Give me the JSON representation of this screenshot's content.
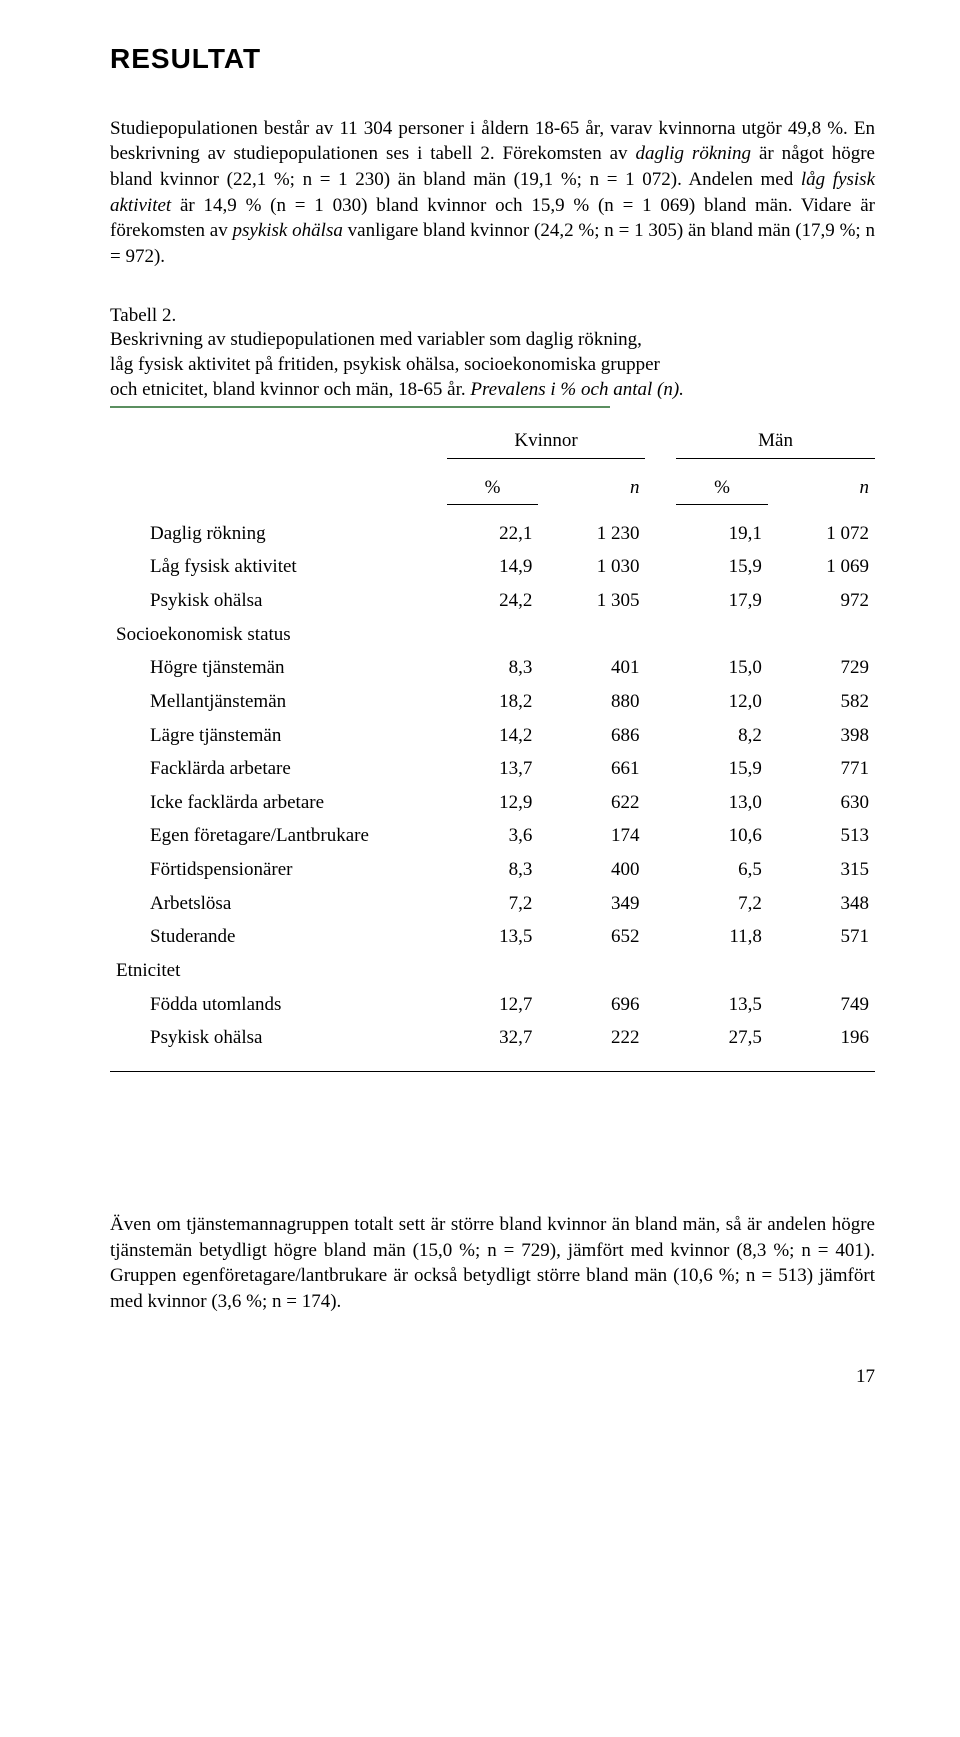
{
  "heading": "RESULTAT",
  "para1_a": "Studiepopulationen består av 11 304 personer i åldern 18-65 år, varav kvinnorna utgör 49,8 %. En beskrivning av studiepopulationen ses i tabell 2. Förekomsten av ",
  "para1_b": "daglig rökning",
  "para1_c": " är något högre bland kvinnor (22,1 %; n = 1 230) än bland män (19,1 %; n = 1 072). Andelen med ",
  "para1_d": "låg fysisk aktivitet",
  "para1_e": " är 14,9 % (n = 1 030) bland kvinnor och 15,9 % (n = 1 069) bland män. Vidare är förekomsten av ",
  "para1_f": "psykisk ohälsa",
  "para1_g": " vanligare bland kvinnor (24,2 %; n = 1 305) än bland män (17,9 %; n = 972).",
  "caption_line1": "Tabell 2.",
  "caption_line2": "Beskrivning av studiepopulationen med variabler som daglig rökning,",
  "caption_line3": "låg fysisk aktivitet på fritiden, psykisk ohälsa, socioekonomiska grupper",
  "caption_line4a": "och etnicitet, bland kvinnor och män, 18-65 år.",
  "caption_line4b": " Prevalens i % och antal (n).",
  "table": {
    "group_headers": [
      "Kvinnor",
      "Män"
    ],
    "sub_headers": [
      "%",
      "n",
      "%",
      "n"
    ],
    "rows": [
      {
        "label": "Daglig rökning",
        "v": [
          "22,1",
          "1 230",
          "19,1",
          "1 072"
        ],
        "indent": true
      },
      {
        "label": "Låg fysisk aktivitet",
        "v": [
          "14,9",
          "1 030",
          "15,9",
          "1 069"
        ],
        "indent": true
      },
      {
        "label": "Psykisk ohälsa",
        "v": [
          "24,2",
          "1 305",
          "17,9",
          "972"
        ],
        "indent": true
      }
    ],
    "section1_label": "Socioekonomisk status",
    "section1_rows": [
      {
        "label": "Högre tjänstemän",
        "v": [
          "8,3",
          "401",
          "15,0",
          "729"
        ]
      },
      {
        "label": "Mellantjänstemän",
        "v": [
          "18,2",
          "880",
          "12,0",
          "582"
        ]
      },
      {
        "label": "Lägre tjänstemän",
        "v": [
          "14,2",
          "686",
          "8,2",
          "398"
        ]
      },
      {
        "label": "Facklärda arbetare",
        "v": [
          "13,7",
          "661",
          "15,9",
          "771"
        ]
      },
      {
        "label": "Icke facklärda arbetare",
        "v": [
          "12,9",
          "622",
          "13,0",
          "630"
        ]
      },
      {
        "label": "Egen företagare/Lantbrukare",
        "v": [
          "3,6",
          "174",
          "10,6",
          "513"
        ]
      },
      {
        "label": "Förtidspensionärer",
        "v": [
          "8,3",
          "400",
          "6,5",
          "315"
        ]
      },
      {
        "label": "Arbetslösa",
        "v": [
          "7,2",
          "349",
          "7,2",
          "348"
        ]
      },
      {
        "label": "Studerande",
        "v": [
          "13,5",
          "652",
          "11,8",
          "571"
        ]
      }
    ],
    "section2_label": "Etnicitet",
    "section2_rows": [
      {
        "label": "Födda utomlands",
        "v": [
          "12,7",
          "696",
          "13,5",
          "749"
        ]
      },
      {
        "label": "Psykisk ohälsa",
        "v": [
          "32,7",
          "222",
          "27,5",
          "196"
        ]
      }
    ]
  },
  "closing": "Även om tjänstemannagruppen totalt sett är större bland kvinnor än bland män, så är andelen högre tjänstemän betydligt högre bland män (15,0 %; n = 729), jämfört med kvinnor (8,3 %; n = 401). Gruppen egenföretagare/lantbrukare är också betydligt större bland män (10,6 %; n = 513) jämfört med kvinnor (3,6 %; n = 174).",
  "page_number": "17",
  "colors": {
    "rule_green": "#5b8f60",
    "text": "#000000",
    "bg": "#ffffff"
  }
}
